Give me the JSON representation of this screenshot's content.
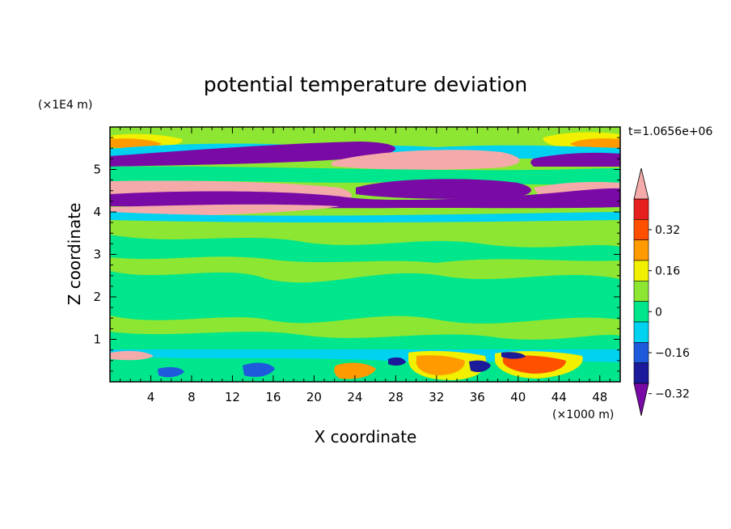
{
  "chart_data": {
    "type": "heatmap",
    "title": "potential temperature deviation",
    "xlabel": "X coordinate",
    "ylabel": "Z coordinate",
    "x_unit_label": "(×1000 m)",
    "y_unit_label": "(×1E4 m)",
    "time_label": "t=1.0656e+06",
    "xlim": [
      0,
      50
    ],
    "ylim": [
      0,
      6
    ],
    "x_ticks": [
      4,
      8,
      12,
      16,
      20,
      24,
      28,
      32,
      36,
      40,
      44,
      48
    ],
    "y_ticks": [
      1,
      2,
      3,
      4,
      5
    ],
    "colorbar": {
      "labels": [
        "0.32",
        "0.16",
        "0",
        "−0.16",
        "−0.32"
      ],
      "levels": [
        -0.4,
        -0.32,
        -0.24,
        -0.16,
        -0.08,
        0,
        0.08,
        0.16,
        0.24,
        0.32,
        0.4
      ],
      "colors": [
        "#7a0aa6",
        "#1a1a9a",
        "#1e5adc",
        "#00d2f0",
        "#00e68c",
        "#8ce632",
        "#f0f000",
        "#ff9a00",
        "#ff5000",
        "#e61e1e",
        "#f5aaaa"
      ]
    },
    "features": [
      {
        "region": "upper layer z~5.1",
        "sign": "negative",
        "level": "< -0.4"
      },
      {
        "region": "upper layer z~4.5",
        "sign": "positive",
        "level": "> 0.4"
      },
      {
        "region": "layer z~4.2",
        "sign": "negative",
        "level": "< -0.4"
      },
      {
        "region": "layer z~3.9",
        "sign": "positive",
        "level": "> 0.4"
      },
      {
        "region": "z 0.8-3.8",
        "sign": "near zero",
        "level": "-0.08 to 0.08"
      },
      {
        "region": "boundary layer z<0.8",
        "sign": "mixed",
        "level": "-0.4 to 0.4"
      }
    ]
  }
}
